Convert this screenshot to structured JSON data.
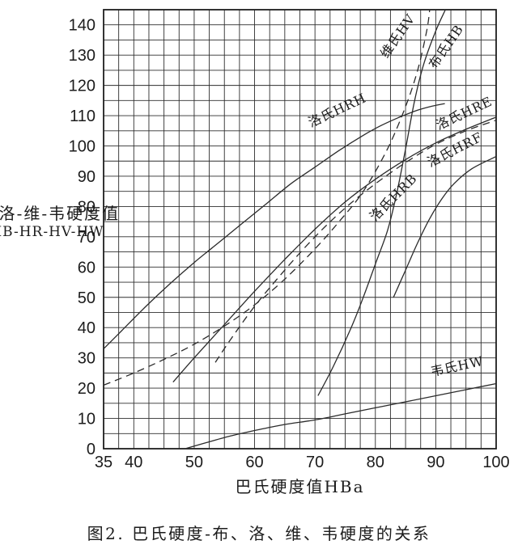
{
  "figure": {
    "caption": "图2. 巴氏硬度-布、洛、维、韦硬度的关系",
    "x_axis_title": "巴氏硬度值HBa",
    "y_axis_title_line1": "布-洛-维-韦硬度值",
    "y_axis_title_line2": "HB-HR-HV-HW"
  },
  "colors": {
    "curve": "#2b2b2b",
    "grid": "#2e2e2e",
    "border": "#1e1e1e",
    "text": "#1c1c1c"
  },
  "chart_data": {
    "type": "line",
    "title": "图2. 巴氏硬度-布、洛、维、韦硬度的关系",
    "xlabel": "巴氏硬度值HBa",
    "ylabel": "布-洛-维-韦硬度值 HB-HR-HV-HW",
    "xlim": [
      35,
      100
    ],
    "ylim": [
      0,
      145
    ],
    "x_ticks": [
      35,
      40,
      50,
      60,
      70,
      80,
      90,
      100
    ],
    "y_ticks": [
      0,
      10,
      20,
      30,
      40,
      50,
      60,
      70,
      80,
      90,
      100,
      110,
      120,
      130,
      140
    ],
    "x_minor_step": 2.5,
    "y_minor_step": 5,
    "grid": true,
    "legend_position": "labels-on-curves",
    "series": [
      {
        "name": "luoshi-HRH",
        "label": "洛氏HRH",
        "dashed": false,
        "label_pos": [
          74,
          110.5
        ],
        "label_angle": -25,
        "points": [
          [
            35,
            33
          ],
          [
            38,
            39
          ],
          [
            42,
            47
          ],
          [
            46,
            54.5
          ],
          [
            50,
            61.5
          ],
          [
            54,
            68
          ],
          [
            58,
            74.5
          ],
          [
            62,
            81
          ],
          [
            66,
            87.5
          ],
          [
            70,
            93
          ],
          [
            74,
            98.5
          ],
          [
            78,
            103.5
          ],
          [
            81,
            106.8
          ],
          [
            84,
            109.5
          ],
          [
            87,
            111.8
          ],
          [
            89.5,
            113.2
          ],
          [
            91.5,
            114
          ]
        ]
      },
      {
        "name": "luoshi-HRE",
        "label": "洛氏HRE",
        "dashed": false,
        "label_pos": [
          95,
          109.5
        ],
        "label_angle": -25,
        "points": [
          [
            46.5,
            22
          ],
          [
            50,
            30
          ],
          [
            55,
            41
          ],
          [
            60,
            52
          ],
          [
            65,
            62.5
          ],
          [
            70,
            72.5
          ],
          [
            75,
            81.5
          ],
          [
            80,
            89
          ],
          [
            85,
            95.5
          ],
          [
            90,
            101
          ],
          [
            95,
            105.5
          ],
          [
            100,
            109.5
          ]
        ]
      },
      {
        "name": "luoshi-HRF",
        "label": "洛氏HRF",
        "dashed": true,
        "label_pos": [
          93.5,
          97.5
        ],
        "label_angle": -27,
        "points": [
          [
            53.5,
            28.5
          ],
          [
            56,
            36
          ],
          [
            60,
            47
          ],
          [
            65,
            59
          ],
          [
            70,
            70
          ],
          [
            75,
            79.5
          ],
          [
            80,
            87.5
          ],
          [
            85,
            94.5
          ],
          [
            90,
            100.5
          ],
          [
            95,
            105
          ],
          [
            100,
            108.5
          ]
        ]
      },
      {
        "name": "luoshi-HRB",
        "label": "洛氏HRB",
        "dashed": false,
        "label_pos": [
          83.5,
          82
        ],
        "label_angle": -45,
        "points": [
          [
            83,
            50
          ],
          [
            85,
            59
          ],
          [
            87,
            68
          ],
          [
            89,
            76
          ],
          [
            91,
            82.5
          ],
          [
            93,
            87.5
          ],
          [
            96,
            92.5
          ],
          [
            100,
            96.5
          ]
        ]
      },
      {
        "name": "bushi-HB",
        "label": "布氏HB",
        "dashed": false,
        "label_pos": [
          92.3,
          132
        ],
        "label_angle": -55,
        "points": [
          [
            70.5,
            17.5
          ],
          [
            73,
            27
          ],
          [
            76,
            40
          ],
          [
            78,
            50
          ],
          [
            80,
            61
          ],
          [
            82,
            72
          ],
          [
            83.5,
            84
          ],
          [
            85,
            99
          ],
          [
            86.5,
            115
          ],
          [
            88,
            127
          ],
          [
            90,
            138
          ],
          [
            91.6,
            145
          ]
        ]
      },
      {
        "name": "weishi-HV",
        "label": "维氏HV",
        "dashed": true,
        "label_pos": [
          84.3,
          135.5
        ],
        "label_angle": -55,
        "points": [
          [
            35,
            21
          ],
          [
            40,
            25
          ],
          [
            45,
            29.5
          ],
          [
            50,
            34.5
          ],
          [
            55,
            40.5
          ],
          [
            60,
            47.5
          ],
          [
            65,
            56
          ],
          [
            70,
            66
          ],
          [
            74,
            75
          ],
          [
            78,
            85
          ],
          [
            82,
            99
          ],
          [
            85,
            113
          ],
          [
            87,
            125
          ],
          [
            88.5,
            138
          ],
          [
            89,
            145
          ]
        ]
      },
      {
        "name": "weishi-HW",
        "label": "韦氏HW",
        "dashed": false,
        "label_pos": [
          93.7,
          25.8
        ],
        "label_angle": -12,
        "points": [
          [
            48.5,
            0
          ],
          [
            52,
            2
          ],
          [
            56,
            4.2
          ],
          [
            60,
            6
          ],
          [
            65,
            8
          ],
          [
            70,
            9.5
          ],
          [
            75,
            11.5
          ],
          [
            80,
            13.5
          ],
          [
            85,
            15.5
          ],
          [
            90,
            17.5
          ],
          [
            95,
            19.5
          ],
          [
            100,
            21.5
          ]
        ]
      }
    ]
  }
}
